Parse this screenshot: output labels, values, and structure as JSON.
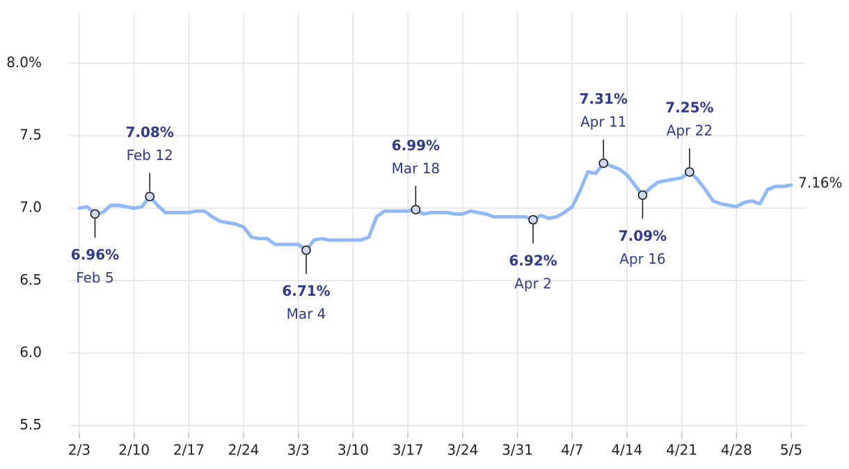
{
  "chart_data": {
    "type": "line",
    "x": [
      "2/3",
      "2/4",
      "2/5",
      "2/6",
      "2/7",
      "2/8",
      "2/9",
      "2/10",
      "2/11",
      "2/12",
      "2/13",
      "2/14",
      "2/15",
      "2/16",
      "2/17",
      "2/18",
      "2/19",
      "2/20",
      "2/21",
      "2/22",
      "2/23",
      "2/24",
      "2/25",
      "2/26",
      "2/27",
      "2/28",
      "3/1",
      "3/2",
      "3/3",
      "3/4",
      "3/5",
      "3/6",
      "3/7",
      "3/8",
      "3/9",
      "3/10",
      "3/11",
      "3/12",
      "3/13",
      "3/14",
      "3/15",
      "3/16",
      "3/17",
      "3/18",
      "3/19",
      "3/20",
      "3/21",
      "3/22",
      "3/23",
      "3/24",
      "3/25",
      "3/26",
      "3/27",
      "3/28",
      "3/29",
      "3/30",
      "3/31",
      "4/1",
      "4/2",
      "4/3",
      "4/4",
      "4/5",
      "4/6",
      "4/7",
      "4/8",
      "4/9",
      "4/10",
      "4/11",
      "4/12",
      "4/13",
      "4/14",
      "4/15",
      "4/16",
      "4/17",
      "4/18",
      "4/19",
      "4/20",
      "4/21",
      "4/22",
      "4/23",
      "4/24",
      "4/25",
      "4/26",
      "4/27",
      "4/28",
      "4/29",
      "4/30",
      "5/1",
      "5/2",
      "5/3",
      "5/4",
      "5/5"
    ],
    "series": [
      {
        "color": "#92b9f7",
        "values": [
          7.0,
          7.01,
          6.96,
          6.97,
          7.02,
          7.02,
          7.01,
          7.0,
          7.01,
          7.08,
          7.02,
          6.97,
          6.97,
          6.97,
          6.97,
          6.98,
          6.98,
          6.94,
          6.91,
          6.9,
          6.89,
          6.87,
          6.8,
          6.79,
          6.79,
          6.75,
          6.75,
          6.75,
          6.75,
          6.71,
          6.78,
          6.79,
          6.78,
          6.78,
          6.78,
          6.78,
          6.78,
          6.8,
          6.94,
          6.98,
          6.98,
          6.98,
          6.98,
          6.99,
          6.96,
          6.97,
          6.97,
          6.97,
          6.96,
          6.96,
          6.98,
          6.97,
          6.96,
          6.94,
          6.94,
          6.94,
          6.94,
          6.94,
          6.92,
          6.95,
          6.93,
          6.94,
          6.97,
          7.01,
          7.12,
          7.25,
          7.24,
          7.31,
          7.29,
          7.27,
          7.23,
          7.16,
          7.09,
          7.14,
          7.18,
          7.19,
          7.2,
          7.21,
          7.25,
          7.2,
          7.13,
          7.05,
          7.03,
          7.02,
          7.01,
          7.04,
          7.05,
          7.03,
          7.13,
          7.15,
          7.15,
          7.16
        ],
        "value_labels": [
          null,
          null,
          "6.96%",
          null,
          null,
          null,
          null,
          null,
          null,
          "7.08%",
          null,
          null,
          null,
          null,
          null,
          null,
          null,
          null,
          null,
          null,
          null,
          null,
          null,
          null,
          null,
          null,
          null,
          null,
          null,
          "6.71%",
          null,
          null,
          null,
          null,
          null,
          null,
          null,
          null,
          null,
          null,
          null,
          null,
          null,
          "6.99%",
          null,
          null,
          null,
          null,
          null,
          null,
          null,
          null,
          null,
          null,
          null,
          null,
          null,
          null,
          "6.92%",
          null,
          null,
          null,
          null,
          null,
          null,
          null,
          null,
          "7.31%",
          null,
          null,
          null,
          null,
          "7.09%",
          null,
          null,
          null,
          null,
          null,
          "7.25%",
          null,
          null,
          null,
          null,
          null,
          null,
          null,
          null,
          null,
          null,
          null,
          null,
          "7.16%"
        ],
        "point_labels": [
          null,
          null,
          "Feb 5",
          null,
          null,
          null,
          null,
          null,
          null,
          "Feb 12",
          null,
          null,
          null,
          null,
          null,
          null,
          null,
          null,
          null,
          null,
          null,
          null,
          null,
          null,
          null,
          null,
          null,
          null,
          null,
          "Mar 4",
          null,
          null,
          null,
          null,
          null,
          null,
          null,
          null,
          null,
          null,
          null,
          null,
          null,
          "Mar 18",
          null,
          null,
          null,
          null,
          null,
          null,
          null,
          null,
          null,
          null,
          null,
          null,
          null,
          null,
          "Apr 2",
          null,
          null,
          null,
          null,
          null,
          null,
          null,
          null,
          "Apr 11",
          null,
          null,
          null,
          null,
          "Apr 16",
          null,
          null,
          null,
          null,
          null,
          "Apr 22",
          null,
          null,
          null,
          null,
          null,
          null,
          null,
          null,
          null,
          null,
          null,
          null,
          null
        ]
      }
    ],
    "xticks": [
      "2/3",
      "2/10",
      "2/17",
      "2/24",
      "3/3",
      "3/10",
      "3/17",
      "3/24",
      "3/31",
      "4/7",
      "4/14",
      "4/21",
      "4/28",
      "5/5"
    ],
    "ylim": [
      5.45,
      8.35
    ],
    "yticks": [
      5.5,
      {
        "value": 6,
        "label": "6.0"
      },
      6.5,
      {
        "value": 7,
        "label": "7.0"
      },
      7.5,
      {
        "value": 8,
        "label": "8.0%"
      }
    ],
    "grid": true
  }
}
